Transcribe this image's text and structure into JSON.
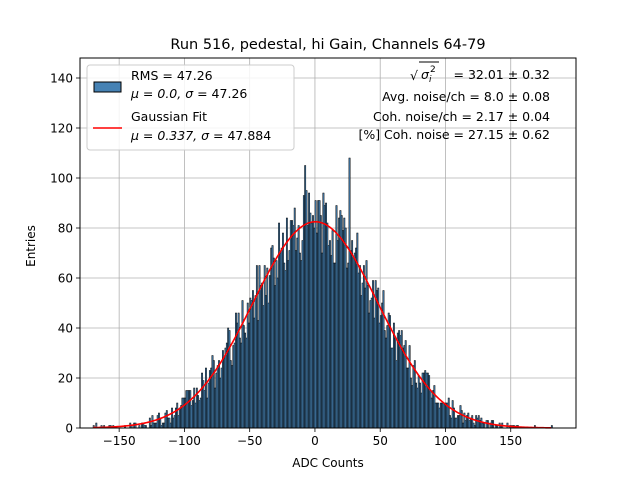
{
  "chart_data": {
    "type": "bar",
    "title": "Run 516, pedestal, hi Gain, Channels 64-79",
    "xlabel": "ADC Counts",
    "ylabel": "Entries",
    "xlim": [
      -180,
      200
    ],
    "ylim": [
      0,
      148
    ],
    "xticks": [
      -150,
      -100,
      -50,
      0,
      50,
      100,
      150
    ],
    "yticks": [
      0,
      20,
      40,
      60,
      80,
      100,
      120,
      140
    ],
    "grid": true,
    "bar_color": "#4682b4",
    "fit_color": "#ff0000",
    "histogram": {
      "bin_width": 1,
      "x_start": -170,
      "x_end": 181,
      "rms": 47.26,
      "mean": 0.0,
      "sigma": 47.26,
      "notable_bins": [
        {
          "x": -168,
          "y": 2
        },
        {
          "x": -8,
          "y": 105
        },
        {
          "x": 26,
          "y": 108
        },
        {
          "x": 181,
          "y": 1
        }
      ]
    },
    "fit": {
      "mu": 0.337,
      "sigma": 47.884,
      "amplitude": 82.5
    },
    "legend": {
      "position": "upper-left",
      "entries": [
        {
          "kind": "patch",
          "line1": "RMS = 47.26",
          "line2_prefix": "μ = 0.0, ",
          "line2_sigma": "σ",
          "line2_suffix": " = 47.26"
        },
        {
          "kind": "line",
          "line1": "Gaussian Fit",
          "line2_prefix": "μ = 0.337, ",
          "line2_sigma": "σ",
          "line2_suffix": " = 47.884"
        }
      ]
    },
    "annotations": [
      {
        "sqrt_symbol": "√",
        "sigma_symbol": "σ",
        "subscript": "i",
        "superscript": "2",
        "value": " = 32.01 ± 0.32"
      },
      {
        "text": "Avg. noise/ch = 8.0 ± 0.08"
      },
      {
        "text": "Coh. noise/ch = 2.17 ± 0.04"
      },
      {
        "text": "[%] Coh. noise = 27.15 ± 0.62"
      }
    ]
  }
}
